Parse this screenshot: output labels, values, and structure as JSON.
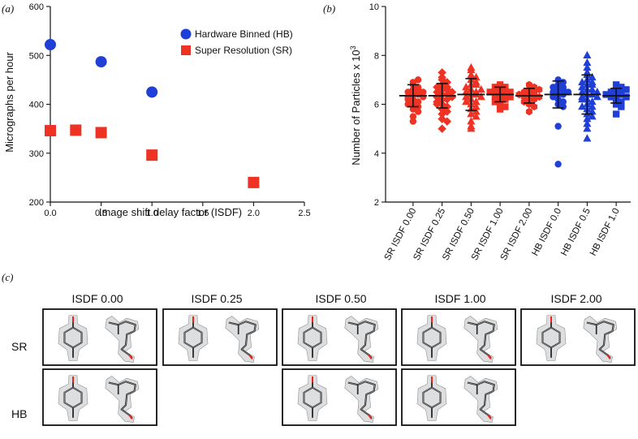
{
  "panel_labels": {
    "a": "(a)",
    "b": "(b)",
    "c": "(c)"
  },
  "colors": {
    "sr": "#ee3224",
    "hb": "#1f3fd6",
    "axis": "#111111"
  },
  "chart_data": [
    {
      "id": "a",
      "type": "scatter",
      "xlabel": "Image shift delay factor (ISDF)",
      "ylabel": "Micrographs per hour",
      "xlim": [
        0,
        2.5
      ],
      "ylim": [
        200,
        600
      ],
      "xticks": [
        "0.0",
        "0.5",
        "1.0",
        "1.5",
        "2.0",
        "2.5"
      ],
      "yticks": [
        "200",
        "300",
        "400",
        "500",
        "600"
      ],
      "series": [
        {
          "name": "Hardware Binned (HB)",
          "marker": "circle",
          "color": "#1f3fd6",
          "points": [
            [
              0.0,
              522
            ],
            [
              0.5,
              487
            ],
            [
              1.0,
              425
            ]
          ]
        },
        {
          "name": "Super Resolution (SR)",
          "marker": "square",
          "color": "#ee3224",
          "points": [
            [
              0.0,
              346
            ],
            [
              0.25,
              347
            ],
            [
              0.5,
              342
            ],
            [
              1.0,
              296
            ],
            [
              2.0,
              240
            ]
          ]
        }
      ],
      "legend_position": "top-right"
    },
    {
      "id": "b",
      "type": "scatter",
      "ylabel": "Number of Particles x 10",
      "ylabel_sup": "3",
      "ylim": [
        2,
        10
      ],
      "yticks": [
        "2",
        "4",
        "6",
        "8",
        "10"
      ],
      "categories": [
        "SR ISDF 0.00",
        "SR ISDF 0.25",
        "SR ISDF 0.50",
        "SR ISDF 1.00",
        "SR ISDF 2.00",
        "HB ISDF 0.0",
        "HB ISDF 0.5",
        "HB ISDF 1.0"
      ],
      "groups": [
        {
          "category": "SR ISDF 0.00",
          "marker": "circle",
          "color": "#ee3224",
          "mean": 6.35,
          "sd": 0.45,
          "values": [
            6.9,
            6.8,
            6.7,
            6.6,
            6.6,
            6.5,
            6.5,
            6.4,
            6.4,
            6.3,
            6.3,
            6.2,
            6.1,
            6.0,
            5.9,
            5.8,
            5.7,
            5.5,
            5.3,
            7.0,
            6.0,
            6.2
          ]
        },
        {
          "category": "SR ISDF 0.25",
          "marker": "diamond",
          "color": "#ee3224",
          "mean": 6.35,
          "sd": 0.5,
          "values": [
            7.3,
            7.1,
            7.0,
            6.9,
            6.8,
            6.7,
            6.6,
            6.6,
            6.5,
            6.5,
            6.4,
            6.4,
            6.3,
            6.3,
            6.2,
            6.2,
            6.1,
            6.0,
            5.9,
            5.8,
            5.7,
            5.6,
            5.4,
            5.3,
            5.0,
            6.0,
            6.7
          ]
        },
        {
          "category": "SR ISDF 0.50",
          "marker": "triangle",
          "color": "#ee3224",
          "mean": 6.4,
          "sd": 0.65,
          "values": [
            7.5,
            7.4,
            7.2,
            7.1,
            7.0,
            6.9,
            6.8,
            6.8,
            6.7,
            6.6,
            6.5,
            6.5,
            6.4,
            6.4,
            6.3,
            6.3,
            6.2,
            6.1,
            6.0,
            5.9,
            5.8,
            5.7,
            5.6,
            5.5,
            5.3,
            5.1,
            5.0,
            6.6,
            6.1
          ]
        },
        {
          "category": "SR ISDF 1.00",
          "marker": "square",
          "color": "#ee3224",
          "mean": 6.4,
          "sd": 0.3,
          "values": [
            6.8,
            6.7,
            6.6,
            6.6,
            6.5,
            6.5,
            6.4,
            6.4,
            6.3,
            6.3,
            6.2,
            6.2,
            6.1,
            6.0,
            5.9,
            5.8,
            6.7,
            6.5
          ]
        },
        {
          "category": "SR ISDF 2.00",
          "marker": "hexagon",
          "color": "#ee3224",
          "mean": 6.35,
          "sd": 0.3,
          "values": [
            6.8,
            6.7,
            6.6,
            6.5,
            6.5,
            6.4,
            6.4,
            6.3,
            6.3,
            6.2,
            6.2,
            6.1,
            6.0,
            5.9,
            5.7,
            6.6,
            6.4
          ]
        },
        {
          "category": "HB ISDF 0.0",
          "marker": "circle",
          "color": "#1f3fd6",
          "mean": 6.4,
          "sd": 0.55,
          "values": [
            7.0,
            6.9,
            6.8,
            6.7,
            6.6,
            6.6,
            6.5,
            6.5,
            6.4,
            6.4,
            6.3,
            6.2,
            6.1,
            6.0,
            5.9,
            5.1,
            3.55,
            6.7
          ]
        },
        {
          "category": "HB ISDF 0.5",
          "marker": "triangle",
          "color": "#1f3fd6",
          "mean": 6.4,
          "sd": 0.8,
          "values": [
            8.0,
            7.7,
            7.5,
            7.3,
            7.2,
            7.1,
            7.0,
            6.9,
            6.8,
            6.8,
            6.7,
            6.6,
            6.6,
            6.5,
            6.5,
            6.4,
            6.4,
            6.3,
            6.3,
            6.2,
            6.1,
            6.0,
            5.9,
            5.8,
            5.7,
            5.6,
            5.5,
            5.4,
            5.2,
            5.0,
            4.6,
            6.2,
            6.9,
            5.9
          ]
        },
        {
          "category": "HB ISDF 1.0",
          "marker": "square",
          "color": "#1f3fd6",
          "mean": 6.35,
          "sd": 0.3,
          "values": [
            6.8,
            6.7,
            6.6,
            6.5,
            6.5,
            6.4,
            6.4,
            6.3,
            6.3,
            6.2,
            6.1,
            6.0,
            5.9,
            5.6,
            6.6,
            6.4
          ]
        }
      ]
    }
  ],
  "panel_c": {
    "columns": [
      "ISDF 0.00",
      "ISDF 0.25",
      "ISDF 0.50",
      "ISDF 1.00",
      "ISDF 2.00"
    ],
    "rows": [
      {
        "label": "SR",
        "present": [
          true,
          true,
          true,
          true,
          true
        ]
      },
      {
        "label": "HB",
        "present": [
          true,
          false,
          true,
          true,
          false
        ]
      }
    ]
  }
}
